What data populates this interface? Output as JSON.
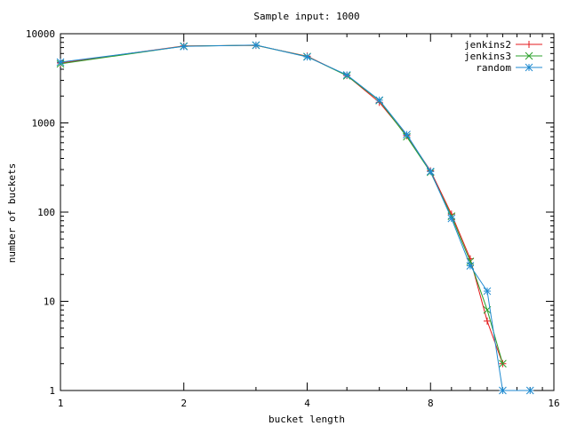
{
  "chart_data": {
    "type": "line",
    "title": "Sample input: 1000",
    "xlabel": "bucket length",
    "ylabel": "number of buckets",
    "xscale": "log2",
    "yscale": "log10",
    "xlim": [
      1,
      16
    ],
    "ylim": [
      1,
      10000
    ],
    "xticks": [
      1,
      2,
      4,
      8,
      16
    ],
    "yticks": [
      1,
      10,
      100,
      1000,
      10000
    ],
    "x_tick_labels": [
      "1",
      "2",
      "4",
      "8",
      "16"
    ],
    "y_tick_labels": [
      "1",
      "10",
      "100",
      "1000",
      "10000"
    ],
    "legend_position": "top-right",
    "grid": false,
    "series": [
      {
        "name": "jenkins2",
        "color": "#e41a1c",
        "marker": "plus",
        "x": [
          1,
          2,
          3,
          4,
          5,
          6,
          7,
          8,
          9,
          10,
          11,
          12
        ],
        "y": [
          4700,
          7300,
          7400,
          5600,
          3400,
          1700,
          720,
          290,
          95,
          30,
          6,
          2
        ]
      },
      {
        "name": "jenkins3",
        "color": "#2ca02c",
        "marker": "cross",
        "x": [
          1,
          2,
          3,
          4,
          5,
          6,
          7,
          8,
          9,
          10,
          11,
          12
        ],
        "y": [
          4600,
          7250,
          7420,
          5550,
          3380,
          1780,
          700,
          280,
          90,
          28,
          8,
          2
        ]
      },
      {
        "name": "random",
        "color": "#1f8ad0",
        "marker": "star",
        "x": [
          1,
          2,
          3,
          4,
          5,
          6,
          7,
          8,
          9,
          10,
          11,
          12,
          14
        ],
        "y": [
          4800,
          7200,
          7450,
          5500,
          3450,
          1800,
          740,
          285,
          85,
          25,
          13,
          1,
          1
        ]
      }
    ]
  }
}
